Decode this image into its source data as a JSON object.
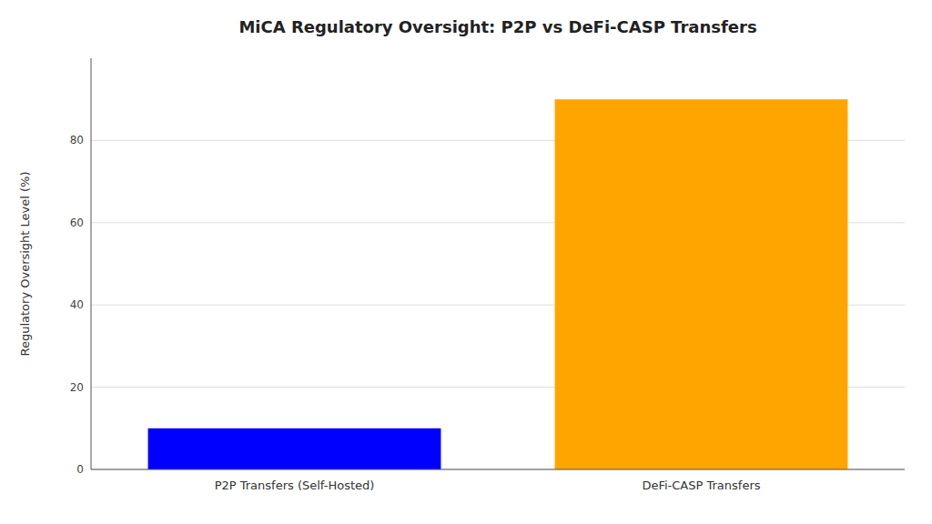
{
  "chart_data": {
    "type": "bar",
    "title": "MiCA Regulatory Oversight: P2P vs DeFi-CASP Transfers",
    "ylabel": "Regulatory Oversight Level (%)",
    "categories": [
      "P2P Transfers (Self-Hosted)",
      "DeFi-CASP Transfers"
    ],
    "values": [
      10,
      90
    ],
    "colors": [
      "#0000FF",
      "#FFA500"
    ],
    "ylim": [
      0,
      100
    ],
    "yticks": [
      0,
      20,
      40,
      60,
      80
    ],
    "grid": true
  }
}
